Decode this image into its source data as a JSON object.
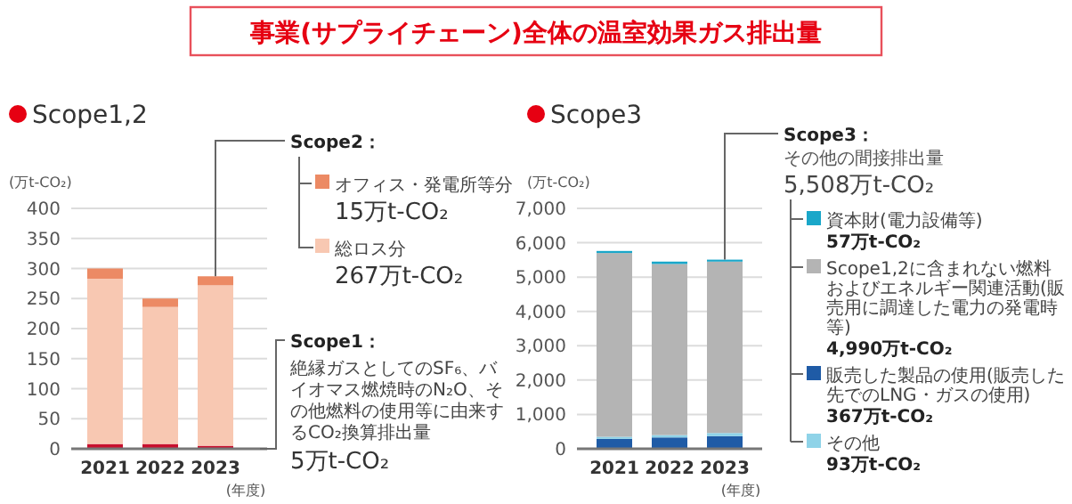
{
  "chart_data": [
    {
      "type": "bar",
      "title": "Scope1,2",
      "ylabel": "(万t-CO₂)",
      "xlabel": "(年度)",
      "categories": [
        "2021",
        "2022",
        "2023"
      ],
      "stacked": true,
      "ylim": [
        0,
        400
      ],
      "yticks": [
        0,
        50,
        100,
        150,
        200,
        250,
        300,
        350,
        400
      ],
      "grid": "y",
      "legend": "right",
      "series": [
        {
          "name": "Scope1：",
          "color": "#c8102e",
          "values": [
            8,
            8,
            5
          ]
        },
        {
          "name": "総ロス分",
          "color": "#f8c8b2",
          "values": [
            275,
            228,
            267
          ]
        },
        {
          "name": "オフィス・発電所等分",
          "color": "#ec8a64",
          "values": [
            17,
            14,
            15
          ]
        }
      ],
      "annotations": [
        "事業(サプライチェーン)全体の温室効果ガス排出量",
        "Scope2：",
        "15万t-CO₂",
        "267万t-CO₂",
        "絶縁ガスとしてのSF₆、バイオマス燃焼時のN₂O、その他燃料の使用等に由来するCO₂換算排出量",
        "5万t-CO₂"
      ]
    },
    {
      "type": "bar",
      "title": "Scope3",
      "ylabel": "(万t-CO₂)",
      "xlabel": "(年度)",
      "categories": [
        "2021",
        "2022",
        "2023"
      ],
      "stacked": true,
      "ylim": [
        0,
        7000
      ],
      "yticks": [
        {
          "value": 0,
          "label": "0"
        },
        {
          "value": 1000,
          "label": "1,000"
        },
        {
          "value": 2000,
          "label": "2,000"
        },
        {
          "value": 3000,
          "label": "3,000"
        },
        {
          "value": 4000,
          "label": "4,000"
        },
        {
          "value": 5000,
          "label": "5,000"
        },
        {
          "value": 6000,
          "label": "6,000"
        },
        {
          "value": 7000,
          "label": "7,000"
        }
      ],
      "grid": "y",
      "legend": "right",
      "series": [
        {
          "name": "販売した製品の使用(販売した先でのLNG・ガスの使用)",
          "color": "#1f5ba6",
          "values": [
            290,
            330,
            367
          ]
        },
        {
          "name": "その他",
          "color": "#8fd3e8",
          "values": [
            60,
            70,
            93
          ]
        },
        {
          "name": "Scope1,2に含まれない燃料およびエネルギー関連活動(販売用に調達した電力の発電時等)",
          "color": "#b4b4b4",
          "values": [
            5350,
            4980,
            4990
          ]
        },
        {
          "name": "資本財(電力設備等)",
          "color": "#1aa7c9",
          "values": [
            60,
            70,
            57
          ]
        }
      ],
      "annotations": [
        "Scope3：",
        "その他の間接排出量",
        "5,508万t-CO₂",
        "367万t-CO₂",
        "93万t-CO₂",
        "4,990万t-CO₂",
        "57万t-CO₂"
      ]
    }
  ]
}
